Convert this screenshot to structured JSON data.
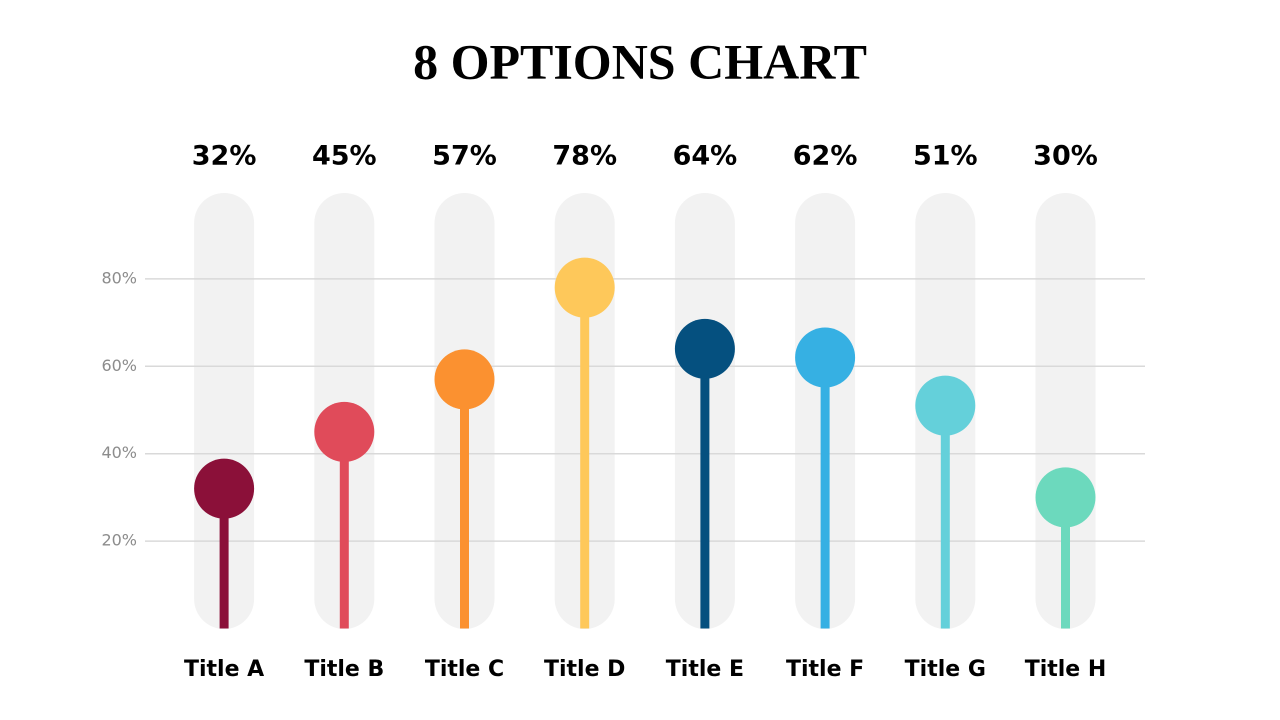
{
  "chart_data": {
    "type": "lollipop",
    "title": "8 OPTIONS CHART",
    "categories": [
      "Title A",
      "Title B",
      "Title C",
      "Title D",
      "Title E",
      "Title F",
      "Title G",
      "Title H"
    ],
    "values": [
      32,
      45,
      57,
      78,
      64,
      62,
      51,
      30
    ],
    "value_labels": [
      "32%",
      "45%",
      "57%",
      "78%",
      "64%",
      "62%",
      "51%",
      "30%"
    ],
    "colors": [
      "#8b1039",
      "#e04b5a",
      "#fb9130",
      "#fec85a",
      "#05507f",
      "#36b0e3",
      "#64d0da",
      "#6cd9bd"
    ],
    "ylim": [
      0,
      100
    ],
    "yticks": [
      {
        "value": 20,
        "label": "20%"
      },
      {
        "value": 40,
        "label": "40%"
      },
      {
        "value": 60,
        "label": "60%"
      },
      {
        "value": 80,
        "label": "80%"
      }
    ],
    "grid": true
  }
}
